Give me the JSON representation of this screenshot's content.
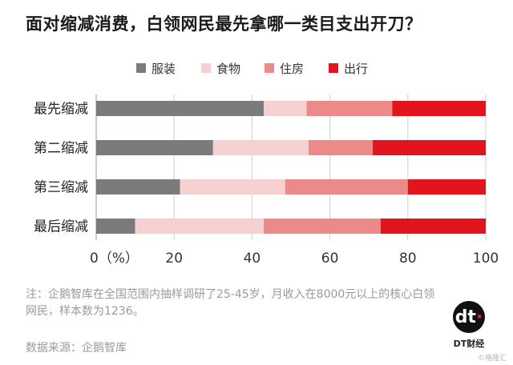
{
  "title": "面对缩减消费，白领网民最先拿哪一类目支出开刀？",
  "note": "注：企鹅智库在全国范围内抽样调研了25-45岁，月收入在8000元以上的核心白领网民，样本数为1236。",
  "source": "数据来源：企鹅智库",
  "logo": {
    "mark": "dt",
    "label": "DT财经"
  },
  "watermark": "©格隆汇",
  "colors": {
    "服装": "#7b7b7b",
    "食物": "#f7d1d1",
    "住房": "#ec8a8a",
    "出行": "#e3141e",
    "grid": "#cfcfcf"
  },
  "chart_data": {
    "type": "bar",
    "orientation": "horizontal",
    "stacked": true,
    "categories": [
      "最先缩减",
      "第二缩减",
      "第三缩减",
      "最后缩减"
    ],
    "series": [
      {
        "name": "服装",
        "values": [
          43,
          30,
          21.5,
          10
        ]
      },
      {
        "name": "食物",
        "values": [
          11,
          24.5,
          27,
          33
        ]
      },
      {
        "name": "住房",
        "values": [
          22,
          16.5,
          31.5,
          30
        ]
      },
      {
        "name": "出行",
        "values": [
          24,
          29,
          20,
          27
        ]
      }
    ],
    "xlim": [
      0,
      100
    ],
    "xticks": [
      0,
      20,
      40,
      60,
      80,
      100
    ],
    "xtick_labels": [
      "0（%）",
      "20",
      "40",
      "60",
      "80",
      "100"
    ],
    "grid": true,
    "legend_position": "top"
  }
}
